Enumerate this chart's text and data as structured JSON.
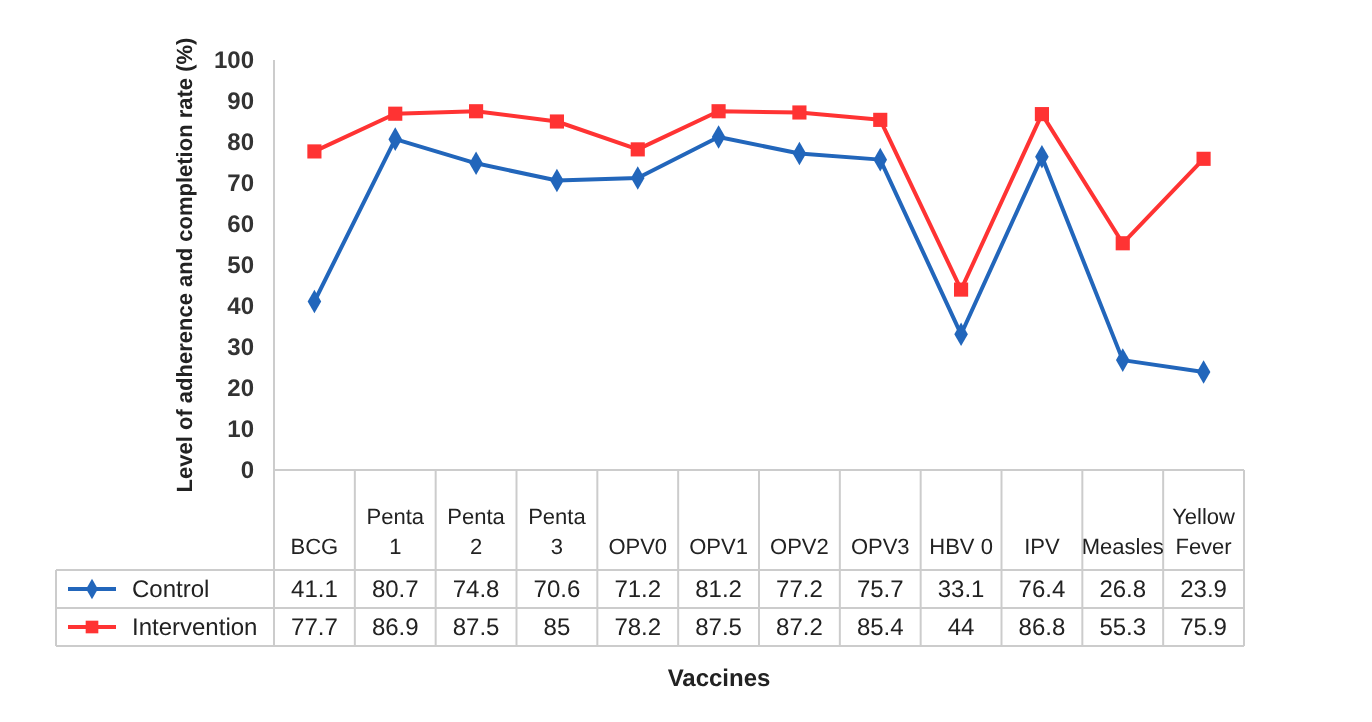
{
  "chart_data": {
    "type": "line",
    "xlabel": "Vaccines",
    "ylabel": "Level of adherence and completion rate (%)",
    "categories": [
      "BCG",
      "Penta 1",
      "Penta 2",
      "Penta 3",
      "OPV0",
      "OPV1",
      "OPV2",
      "OPV3",
      "HBV 0",
      "IPV",
      "Measles",
      "Yellow Fever"
    ],
    "ylim": [
      0,
      100
    ],
    "yticks": [
      0,
      10,
      20,
      30,
      40,
      50,
      60,
      70,
      80,
      90,
      100
    ],
    "grid": false,
    "legend": "bottom",
    "data_labels": true,
    "series": [
      {
        "name": "Control",
        "color": "#2266bb",
        "marker": "diamond",
        "values": [
          41.1,
          80.7,
          74.8,
          70.6,
          71.2,
          81.2,
          77.2,
          75.7,
          33.1,
          76.4,
          26.8,
          23.9
        ]
      },
      {
        "name": "Intervention",
        "color": "#ff3333",
        "marker": "square",
        "values": [
          77.7,
          86.9,
          87.5,
          85,
          78.2,
          87.5,
          87.2,
          85.4,
          44,
          86.8,
          55.3,
          75.9
        ]
      }
    ]
  }
}
